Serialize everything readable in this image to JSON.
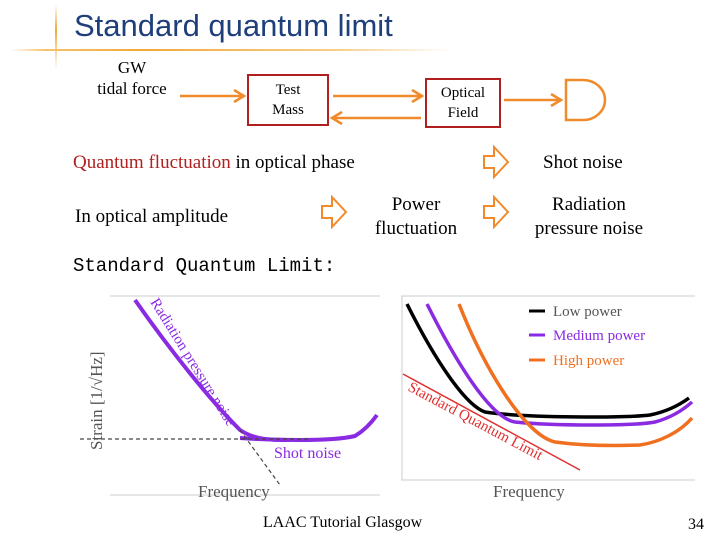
{
  "slide": {
    "title": "Standard quantum limit",
    "page_number": "34",
    "footer": "LAAC Tutorial Glasgow"
  },
  "flow": {
    "gw_line1": "GW",
    "gw_line2": "tidal force",
    "test_mass_line1": "Test",
    "test_mass_line2": "Mass",
    "optical_field_line1": "Optical",
    "optical_field_line2": "Field"
  },
  "statements": {
    "phase_highlight": "Quantum fluctuation",
    "phase_rest": " in optical phase",
    "shot_noise": "Shot noise",
    "amplitude": "In optical amplitude",
    "power_fluct_line1": "Power",
    "power_fluct_line2": "fluctuation",
    "rad_pressure_line1": "Radiation",
    "rad_pressure_line2": "pressure noise",
    "sql_heading": "Standard Quantum Limit:"
  },
  "colors": {
    "title": "#1f3f7a",
    "accent_line": "#f2a93b",
    "arrow": "#f08a2a",
    "box_border": "#b02020",
    "low_power": "#000000",
    "medium_power": "#8a2be2",
    "high_power": "#f07020",
    "sql_line": "#e03030"
  },
  "chart_data": [
    {
      "type": "line",
      "title": "",
      "ylabel": "Strain [1/√Hz]",
      "xlabel": "Frequency",
      "annotations": [
        "Radiation pressure noise",
        "Shot noise"
      ],
      "series": [
        {
          "name": "Radiation pressure noise",
          "color": "#8a2be2",
          "shape": "decreasing at low frequency"
        },
        {
          "name": "Shot noise",
          "color": "#8a2be2",
          "shape": "flat then rising at high frequency"
        }
      ]
    },
    {
      "type": "line",
      "title": "",
      "xlabel": "Frequency",
      "annotations": [
        "Standard Quantum Limit"
      ],
      "legend": "top-right",
      "series": [
        {
          "name": "Low power",
          "color": "#000000"
        },
        {
          "name": "Medium power",
          "color": "#8a2be2"
        },
        {
          "name": "High power",
          "color": "#f07020"
        },
        {
          "name": "Standard Quantum Limit",
          "color": "#e03030"
        }
      ]
    }
  ]
}
